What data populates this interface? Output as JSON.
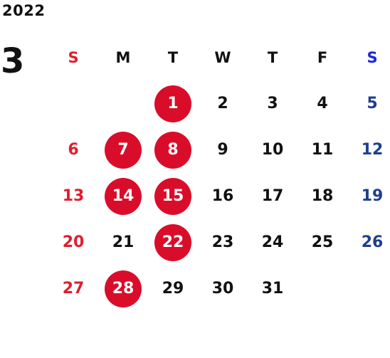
{
  "year": "2022",
  "month": "3",
  "colors": {
    "sunday": "#e01e2d",
    "saturday": "#1e3f8c",
    "saturday_header": "#1d27d8",
    "highlight": "#d90d2a",
    "text": "#111111"
  },
  "weekdays": [
    "S",
    "M",
    "T",
    "W",
    "T",
    "F",
    "S"
  ],
  "weeks": [
    [
      {
        "day": ""
      },
      {
        "day": ""
      },
      {
        "day": "1",
        "marked": true
      },
      {
        "day": "2"
      },
      {
        "day": "3"
      },
      {
        "day": "4"
      },
      {
        "day": "5"
      }
    ],
    [
      {
        "day": "6"
      },
      {
        "day": "7",
        "marked": true
      },
      {
        "day": "8",
        "marked": true
      },
      {
        "day": "9"
      },
      {
        "day": "10"
      },
      {
        "day": "11"
      },
      {
        "day": "12"
      }
    ],
    [
      {
        "day": "13"
      },
      {
        "day": "14",
        "marked": true
      },
      {
        "day": "15",
        "marked": true
      },
      {
        "day": "16"
      },
      {
        "day": "17"
      },
      {
        "day": "18"
      },
      {
        "day": "19"
      }
    ],
    [
      {
        "day": "20"
      },
      {
        "day": "21"
      },
      {
        "day": "22",
        "marked": true
      },
      {
        "day": "23"
      },
      {
        "day": "24"
      },
      {
        "day": "25"
      },
      {
        "day": "26"
      }
    ],
    [
      {
        "day": "27"
      },
      {
        "day": "28",
        "marked": true
      },
      {
        "day": "29"
      },
      {
        "day": "30"
      },
      {
        "day": "31"
      },
      {
        "day": ""
      },
      {
        "day": ""
      }
    ]
  ]
}
